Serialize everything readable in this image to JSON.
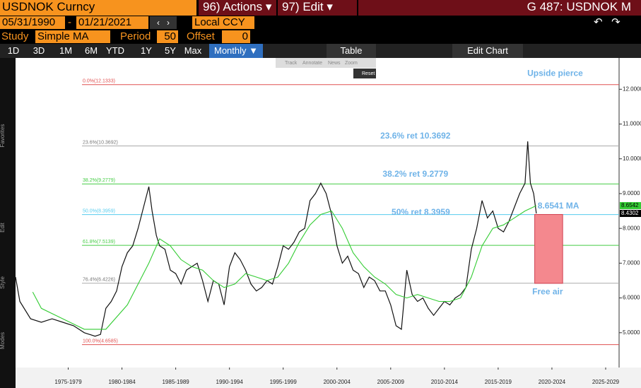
{
  "header": {
    "security": "USDNOK Curncy",
    "actions_num": "96)",
    "actions": "Actions",
    "edit_num": "97)",
    "edit": "Edit",
    "page_code": "G 487: USDNOK M",
    "start_date": "05/31/1990",
    "date_sep": "-",
    "end_date": "01/21/2021",
    "currency": "Local CCY",
    "study_label": "Study",
    "study": "Simple MA",
    "period_label": "Period",
    "period": "50",
    "offset_label": "Offset",
    "offset": "0"
  },
  "toolbar": {
    "ranges": [
      "1D",
      "3D",
      "1M",
      "6M",
      "YTD",
      "1Y",
      "5Y",
      "Max"
    ],
    "frequency": "Monthly ▼",
    "table": "Table",
    "edit_chart": "Edit Chart"
  },
  "mini_toolbar": {
    "items": [
      "Track",
      "Annotate",
      "News",
      "Zoom"
    ],
    "reset": "Reset"
  },
  "side_toolbar": {
    "labels": [
      "Favorites",
      "Edit",
      "Style",
      "Modes"
    ]
  },
  "chart_data": {
    "type": "line",
    "xlim": [
      1972.6,
      2028.75
    ],
    "ylim": [
      4.0,
      12.9
    ],
    "xticks": [
      {
        "value": 1977.5,
        "label": "1975-1979"
      },
      {
        "value": 1982.5,
        "label": "1980-1984"
      },
      {
        "value": 1987.5,
        "label": "1985-1989"
      },
      {
        "value": 1992.5,
        "label": "1990-1994"
      },
      {
        "value": 1997.5,
        "label": "1995-1999"
      },
      {
        "value": 2002.5,
        "label": "2000-2004"
      },
      {
        "value": 2007.5,
        "label": "2005-2009"
      },
      {
        "value": 2012.5,
        "label": "2010-2014"
      },
      {
        "value": 2017.5,
        "label": "2015-2019"
      },
      {
        "value": 2022.5,
        "label": "2020-2024"
      },
      {
        "value": 2027.5,
        "label": "2025-2029"
      }
    ],
    "yticks": [
      {
        "value": 5,
        "label": "5.0000"
      },
      {
        "value": 6,
        "label": "6.0000"
      },
      {
        "value": 7,
        "label": "7.0000"
      },
      {
        "value": 8,
        "label": "8.0000"
      },
      {
        "value": 9,
        "label": "9.0000"
      },
      {
        "value": 10,
        "label": "10.0000"
      },
      {
        "value": 11,
        "label": "11.0000"
      },
      {
        "value": 12,
        "label": "12.0000"
      }
    ],
    "series": [
      {
        "color": "#111111",
        "x": [
          1972.6,
          1973,
          1974,
          1975,
          1976,
          1977,
          1978,
          1979,
          1980,
          1980.5,
          1981,
          1981.5,
          1982,
          1982.5,
          1983,
          1983.5,
          1984,
          1984.5,
          1985,
          1985.3,
          1985.7,
          1986,
          1986.5,
          1987,
          1987.5,
          1988,
          1988.5,
          1989,
          1989.5,
          1990,
          1990.5,
          1991,
          1991.5,
          1992,
          1992.5,
          1993,
          1993.5,
          1994,
          1994.5,
          1995,
          1995.5,
          1996,
          1996.5,
          1997,
          1997.5,
          1998,
          1998.5,
          1999,
          1999.5,
          2000,
          2000.5,
          2001,
          2001.5,
          2002,
          2002.5,
          2003,
          2003.5,
          2004,
          2004.5,
          2005,
          2005.5,
          2006,
          2006.5,
          2007,
          2007.5,
          2008,
          2008.5,
          2009,
          2009.5,
          2010,
          2010.5,
          2011,
          2011.5,
          2012,
          2012.5,
          2013,
          2013.5,
          2014,
          2014.5,
          2015,
          2015.5,
          2016,
          2016.5,
          2017,
          2017.5,
          2018,
          2018.5,
          2019,
          2019.5,
          2020,
          2020.25,
          2020.5,
          2020.8,
          2021.05
        ],
        "values": [
          6.6,
          5.9,
          5.4,
          5.3,
          5.4,
          5.3,
          5.2,
          5.0,
          4.9,
          4.95,
          5.7,
          5.9,
          6.2,
          6.9,
          7.3,
          7.5,
          8.0,
          8.6,
          9.2,
          8.5,
          7.8,
          7.5,
          7.4,
          6.8,
          6.7,
          6.4,
          6.8,
          6.9,
          7.0,
          6.5,
          5.9,
          6.5,
          6.4,
          5.8,
          6.9,
          7.3,
          7.1,
          6.8,
          6.4,
          6.2,
          6.3,
          6.5,
          6.4,
          6.9,
          7.5,
          7.4,
          7.6,
          7.9,
          8.0,
          8.8,
          9.0,
          9.3,
          9.0,
          8.4,
          7.5,
          7.0,
          7.2,
          6.8,
          6.7,
          6.3,
          6.6,
          6.5,
          6.2,
          6.2,
          5.8,
          5.2,
          5.1,
          6.8,
          6.1,
          5.9,
          6.0,
          5.7,
          5.5,
          5.7,
          5.9,
          5.8,
          6.0,
          6.1,
          6.3,
          7.4,
          8.0,
          8.8,
          8.3,
          8.5,
          8.0,
          7.9,
          8.2,
          8.6,
          9.0,
          9.3,
          10.5,
          9.3,
          9.0,
          8.43
        ]
      },
      {
        "color": "#33cc33",
        "x": [
          1974.2,
          1975,
          1977,
          1979,
          1981,
          1983,
          1985,
          1986,
          1987,
          1988,
          1989,
          1990,
          1991,
          1992,
          1993,
          1994,
          1995,
          1996,
          1997,
          1998,
          1999,
          2000,
          2001,
          2002,
          2003,
          2004,
          2005,
          2006,
          2007,
          2008,
          2009,
          2010,
          2011,
          2012,
          2013,
          2014,
          2015,
          2016,
          2017,
          2018,
          2019,
          2020,
          2021.05
        ],
        "values": [
          6.17,
          5.7,
          5.4,
          5.1,
          5.1,
          5.8,
          7.0,
          7.7,
          7.5,
          7.1,
          6.9,
          6.8,
          6.5,
          6.3,
          6.4,
          6.7,
          6.6,
          6.5,
          6.6,
          7.0,
          7.6,
          8.1,
          8.4,
          8.5,
          8.0,
          7.3,
          6.9,
          6.6,
          6.4,
          6.1,
          6.0,
          6.1,
          6.0,
          5.9,
          5.9,
          6.0,
          6.6,
          7.5,
          8.0,
          8.1,
          8.3,
          8.5,
          8.6541
        ]
      }
    ],
    "levels": [
      {
        "label": "0.0%(12.1333)",
        "value": 12.1333,
        "color": "#e05050"
      },
      {
        "label": "23.6%(10.3692)",
        "value": 10.3692,
        "color": "#aaaaaa"
      },
      {
        "label": "38.2%(9.2779)",
        "value": 9.2779,
        "color": "#44cc44"
      },
      {
        "label": "50.0%(8.3959)",
        "value": 8.3959,
        "color": "#55ccee"
      },
      {
        "label": "61.8%(7.5139)",
        "value": 7.5139,
        "color": "#44cc44"
      },
      {
        "label": "76.4%(6.4226)",
        "value": 6.4226,
        "color": "#aaaaaa"
      },
      {
        "label": "100.0%(4.6585)",
        "value": 4.6585,
        "color": "#e05050"
      }
    ],
    "annotations": [
      {
        "text": "Upside pierce",
        "x": 2022.8,
        "y": 12.45
      },
      {
        "text": "23.6% ret 10.3692",
        "x": 2009.8,
        "y": 10.65
      },
      {
        "text": "38.2% ret 9.2779",
        "x": 2009.8,
        "y": 9.55
      },
      {
        "text": "50% ret 8.3959",
        "x": 2010.3,
        "y": 8.45
      },
      {
        "text": "8.6541 MA",
        "x": 2023.1,
        "y": 8.64
      },
      {
        "text": "Free air",
        "x": 2022.1,
        "y": 6.17
      }
    ],
    "free_air": {
      "x": [
        2020.9,
        2023.5
      ],
      "y": [
        6.42,
        8.4
      ],
      "color": "#f4888e"
    },
    "price_tags": [
      {
        "value": 8.6542,
        "color": "#33cc33"
      },
      {
        "value": 8.4302,
        "color": "#000000"
      }
    ]
  }
}
